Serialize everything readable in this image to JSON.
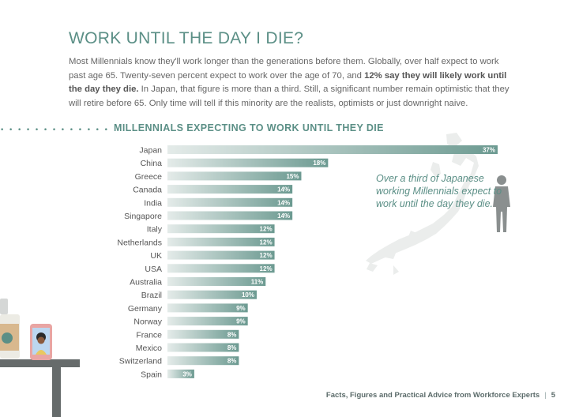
{
  "page": {
    "title": "WORK UNTIL THE DAY I DIE?",
    "intro_part1": "Most Millennials know they'll work longer than the generations before them. Globally, over half expect to work past age 65. Twenty-seven percent expect to work over the age of 70, and ",
    "intro_bold": "12% say they will likely work until the day they die.",
    "intro_part2": " In Japan, that figure is more than a third. Still, a significant number remain optimistic that they will retire before 65. Only time will tell if this minority are the realists, optimists or just downright naive.",
    "dots": "• • • • • • • • • • • • • • • • • • • •",
    "callout": "Over a third of Japanese working Millennials expect to work until the day they die."
  },
  "footer": {
    "text": "Facts, Figures and Practical Advice from Workforce Experts",
    "separator": "|",
    "page_number": "5"
  },
  "colors": {
    "accent": "#5b8f86",
    "bar_start": "#e4ebe9",
    "bar_end": "#6c9a91",
    "illustration": "#8a8f8f"
  },
  "chart_data": {
    "type": "bar",
    "orientation": "horizontal",
    "title": "MILLENNIALS EXPECTING TO WORK UNTIL THEY DIE",
    "categories": [
      "Japan",
      "China",
      "Greece",
      "Canada",
      "India",
      "Singapore",
      "Italy",
      "Netherlands",
      "UK",
      "USA",
      "Australia",
      "Brazil",
      "Germany",
      "Norway",
      "France",
      "Mexico",
      "Switzerland",
      "Spain"
    ],
    "values": [
      37,
      18,
      15,
      14,
      14,
      14,
      12,
      12,
      12,
      12,
      11,
      10,
      9,
      9,
      8,
      8,
      8,
      3
    ],
    "value_labels": [
      "37%",
      "18%",
      "15%",
      "14%",
      "14%",
      "14%",
      "12%",
      "12%",
      "12%",
      "12%",
      "11%",
      "10%",
      "9%",
      "9%",
      "8%",
      "8%",
      "8%",
      "3%"
    ],
    "unit": "%",
    "xlim": [
      0,
      37
    ],
    "grid": false,
    "legend": "none"
  }
}
